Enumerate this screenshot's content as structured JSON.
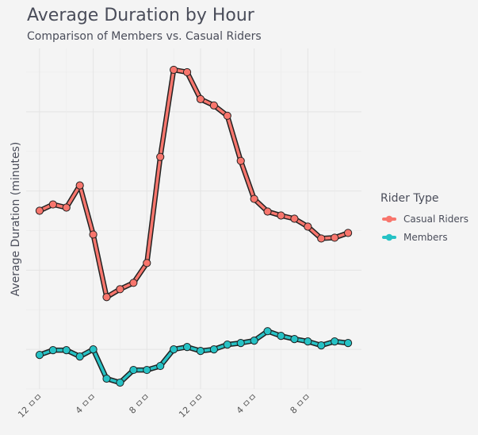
{
  "chart_data": {
    "type": "line",
    "title": "Average Duration by Hour",
    "subtitle": "Comparison of Members vs. Casual Riders",
    "xlabel": "",
    "ylabel": "Average Duration (minutes)",
    "x": [
      0,
      1,
      2,
      3,
      4,
      5,
      6,
      7,
      8,
      9,
      10,
      11,
      12,
      13,
      14,
      15,
      16,
      17,
      18,
      19,
      20,
      21,
      22,
      23
    ],
    "x_tick_values": [
      0,
      4,
      8,
      12,
      16,
      20
    ],
    "x_tick_labels": [
      "12 ㅁㅁ",
      "4 ㅁㅁ",
      "8 ㅁㅁ",
      "12 ㅁㅁ",
      "4 ㅁㅁ",
      "8 ㅁㅁ"
    ],
    "xlim": [
      -1,
      24
    ],
    "ylim": [
      0,
      43
    ],
    "y_gridlines": [
      5,
      15,
      25,
      35
    ],
    "y_tick_labels_shown": false,
    "grid": true,
    "legend_title": "Rider Type",
    "legend_position": "right",
    "series": [
      {
        "name": "Casual Riders",
        "color": "#f8766d",
        "values": [
          22.5,
          23.3,
          22.9,
          25.7,
          19.5,
          11.6,
          12.6,
          13.4,
          15.9,
          29.3,
          40.3,
          40.0,
          36.6,
          35.8,
          34.5,
          28.8,
          24.0,
          22.4,
          21.9,
          21.5,
          20.5,
          19.0,
          19.1,
          19.7
        ]
      },
      {
        "name": "Members",
        "color": "#26c2c5",
        "values": [
          4.3,
          4.9,
          4.9,
          4.1,
          5.0,
          1.3,
          0.8,
          2.4,
          2.4,
          2.9,
          5.0,
          5.3,
          4.8,
          5.0,
          5.6,
          5.8,
          6.1,
          7.3,
          6.7,
          6.3,
          6.0,
          5.5,
          6.0,
          5.8
        ]
      }
    ]
  }
}
